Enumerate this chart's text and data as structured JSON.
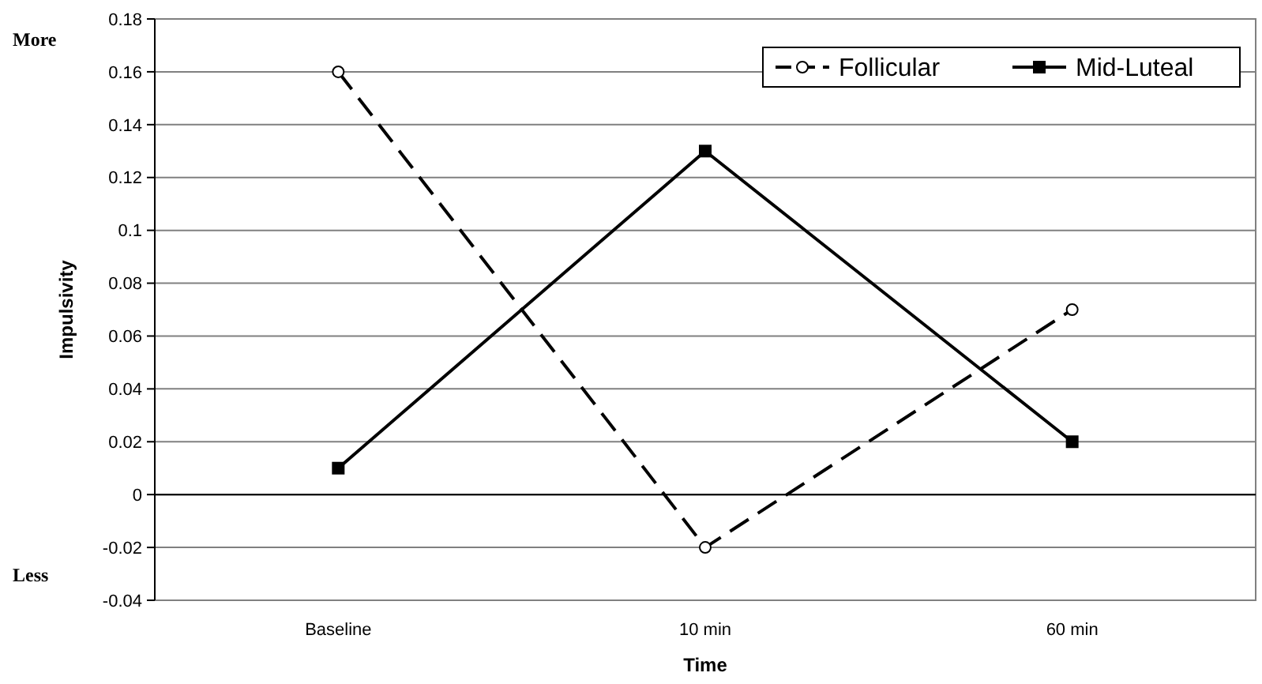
{
  "chart_data": {
    "type": "line",
    "xlabel": "Time",
    "ylabel": "Impulsivity",
    "categories": [
      "Baseline",
      "10 min",
      "60 min"
    ],
    "series": [
      {
        "name": "Follicular",
        "color": "#000000",
        "values": [
          0.16,
          -0.02,
          0.07
        ],
        "marker": "circle",
        "line_style": "dashed"
      },
      {
        "name": "Mid-Luteal",
        "color": "#000000",
        "values": [
          0.01,
          0.13,
          0.02
        ],
        "marker": "square",
        "line_style": "solid"
      }
    ],
    "ylim": [
      -0.04,
      0.18
    ],
    "yticks": [
      -0.04,
      -0.02,
      0,
      0.02,
      0.04,
      0.06,
      0.08,
      0.1,
      0.12,
      0.14,
      0.16,
      0.18
    ],
    "grid": "y",
    "legend": "top right",
    "annotations": [
      "More",
      "Less"
    ]
  }
}
